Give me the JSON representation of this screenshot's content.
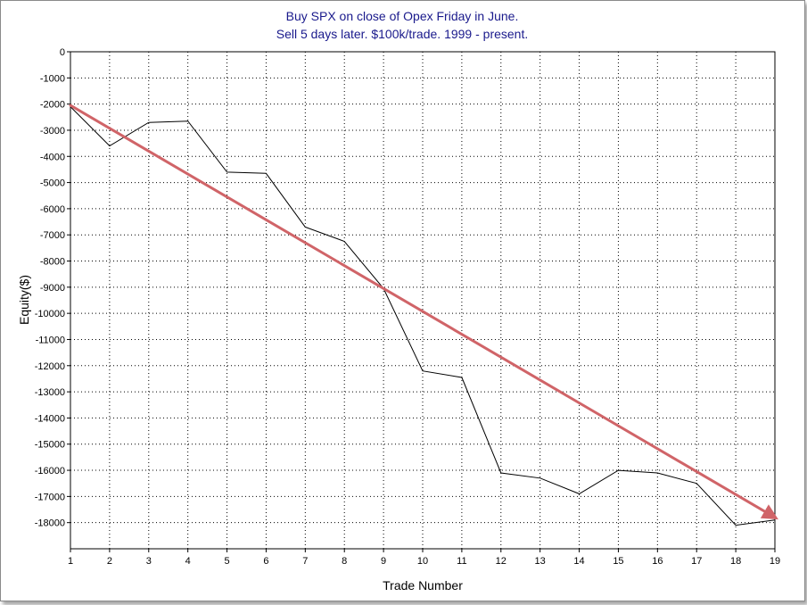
{
  "chart_data": {
    "type": "line",
    "title_lines": [
      "Buy SPX on close of Opex Friday in June.",
      "Sell 5 days later. $100k/trade. 1999 - present."
    ],
    "xlabel": "Trade Number",
    "ylabel": "Equity($)",
    "xlim": [
      1,
      19
    ],
    "ylim": [
      -19000,
      0
    ],
    "x_ticks": [
      1,
      2,
      3,
      4,
      5,
      6,
      7,
      8,
      9,
      10,
      11,
      12,
      13,
      14,
      15,
      16,
      17,
      18,
      19
    ],
    "y_ticks": [
      0,
      -1000,
      -2000,
      -3000,
      -4000,
      -5000,
      -6000,
      -7000,
      -8000,
      -9000,
      -10000,
      -11000,
      -12000,
      -13000,
      -14000,
      -15000,
      -16000,
      -17000,
      -18000
    ],
    "grid": true,
    "series": [
      {
        "color": "#000000",
        "x": [
          1,
          2,
          3,
          4,
          5,
          6,
          7,
          8,
          9,
          10,
          11,
          12,
          13,
          14,
          15,
          16,
          17,
          18,
          19
        ],
        "y": [
          -2100,
          -3600,
          -2700,
          -2650,
          -4600,
          -4650,
          -6700,
          -7250,
          -9050,
          -12200,
          -12450,
          -16100,
          -16300,
          -16900,
          -16000,
          -16100,
          -16500,
          -18100,
          -17900
        ]
      }
    ],
    "annotations": [
      {
        "type": "arrow",
        "color": "#d06468",
        "from": [
          1,
          -2050
        ],
        "to": [
          19,
          -17800
        ]
      }
    ]
  }
}
